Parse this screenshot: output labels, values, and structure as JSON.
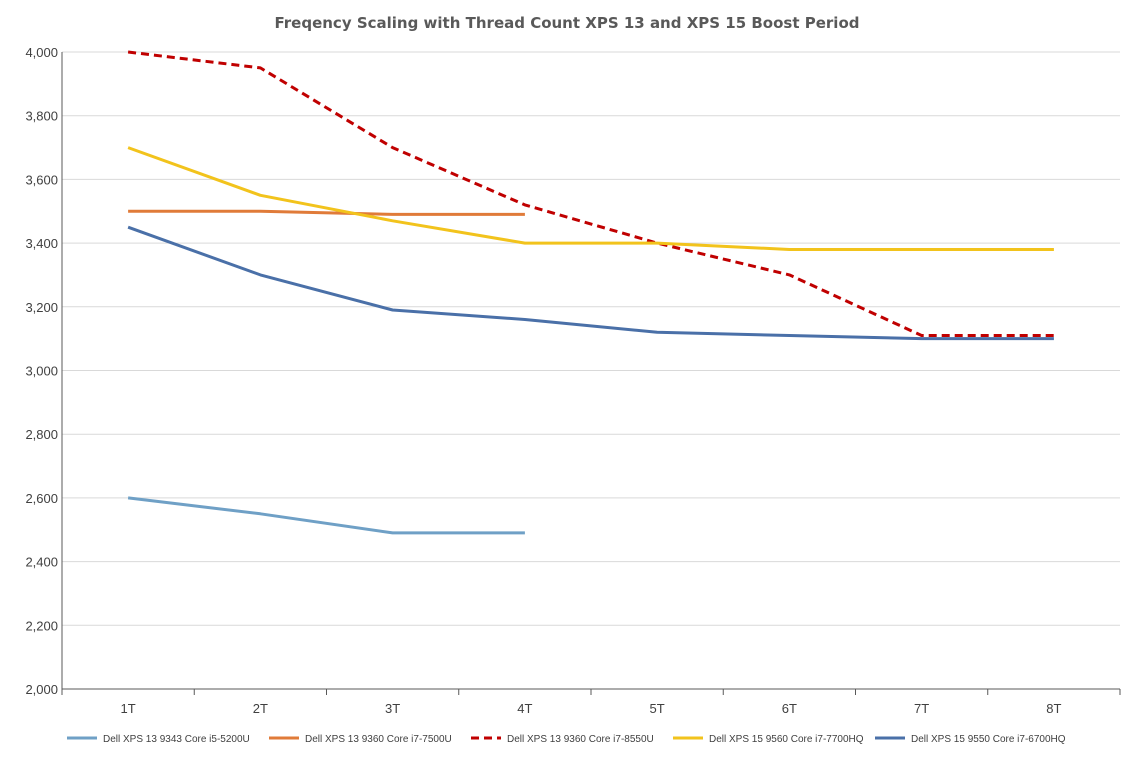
{
  "chart_data": {
    "type": "line",
    "title": "Freqency Scaling with Thread Count XPS 13 and XPS 15 Boost Period",
    "xlabel": "",
    "ylabel": "",
    "categories": [
      "1T",
      "2T",
      "3T",
      "4T",
      "5T",
      "6T",
      "7T",
      "8T"
    ],
    "ylim": [
      2000,
      4000
    ],
    "yticks": [
      2000,
      2200,
      2400,
      2600,
      2800,
      3000,
      3200,
      3400,
      3600,
      3800,
      4000
    ],
    "ytick_labels": [
      "2,000",
      "2,200",
      "2,400",
      "2,600",
      "2,800",
      "3,000",
      "3,200",
      "3,400",
      "3,600",
      "3,800",
      "4,000"
    ],
    "grid": true,
    "legend_position": "bottom",
    "series": [
      {
        "name": "Dell XPS 13 9343 Core i5-5200U",
        "values": [
          2600,
          2550,
          2490,
          2490,
          null,
          null,
          null,
          null
        ],
        "color": "#6fa0c6",
        "dashed": false
      },
      {
        "name": "Dell XPS 13 9360 Core i7-7500U",
        "values": [
          3500,
          3500,
          3490,
          3490,
          null,
          null,
          null,
          null
        ],
        "color": "#e07b39",
        "dashed": false
      },
      {
        "name": "Dell XPS 13 9360 Core i7-8550U",
        "values": [
          4000,
          3950,
          3700,
          3520,
          3400,
          3300,
          3110,
          3110
        ],
        "color": "#c00000",
        "dashed": true
      },
      {
        "name": "Dell XPS 15 9560 Core i7-7700HQ",
        "values": [
          3700,
          3550,
          3470,
          3400,
          3400,
          3380,
          3380,
          3380
        ],
        "color": "#f2c31c",
        "dashed": false
      },
      {
        "name": "Dell XPS 15 9550 Core i7-6700HQ",
        "values": [
          3450,
          3300,
          3190,
          3160,
          3120,
          3110,
          3100,
          3100
        ],
        "color": "#4a70a8",
        "dashed": false
      }
    ]
  }
}
